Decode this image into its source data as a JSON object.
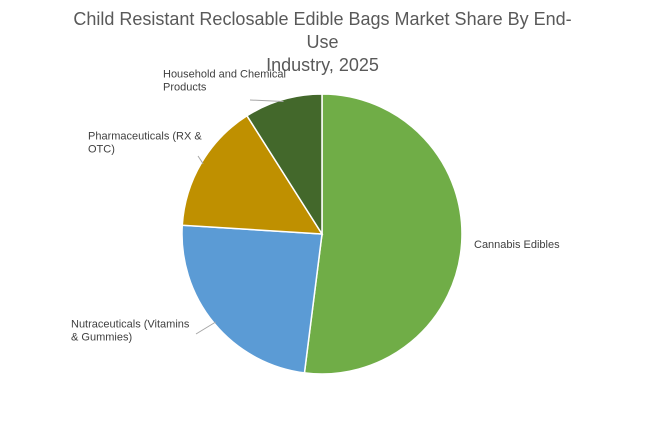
{
  "chart_data": {
    "type": "pie",
    "title": "Child Resistant Reclosable Edible Bags Market Share By End-Use Industry, 2025",
    "title_lines": [
      "Child Resistant Reclosable Edible Bags Market Share By End-Use",
      "Industry, 2025"
    ],
    "series": [
      {
        "labels": [
          "Cannabis Edibles",
          "Nutraceuticals (Vitamins & Gummies)",
          "Pharmaceuticals (RX & OTC)",
          "Household and Chemical Products"
        ],
        "values": [
          52,
          24,
          15,
          9
        ],
        "colors": [
          "#70AD47",
          "#5B9BD5",
          "#BF9000",
          "#43682B"
        ]
      }
    ],
    "label_lines": [
      [
        "Cannabis Edibles"
      ],
      [
        "Nutraceuticals (Vitamins",
        "& Gummies)"
      ],
      [
        "Pharmaceuticals (RX &",
        "OTC)"
      ],
      [
        "Household and Chemical",
        "Products"
      ]
    ],
    "legend": "none",
    "start_angle": "12 o'clock",
    "direction": "clockwise"
  }
}
